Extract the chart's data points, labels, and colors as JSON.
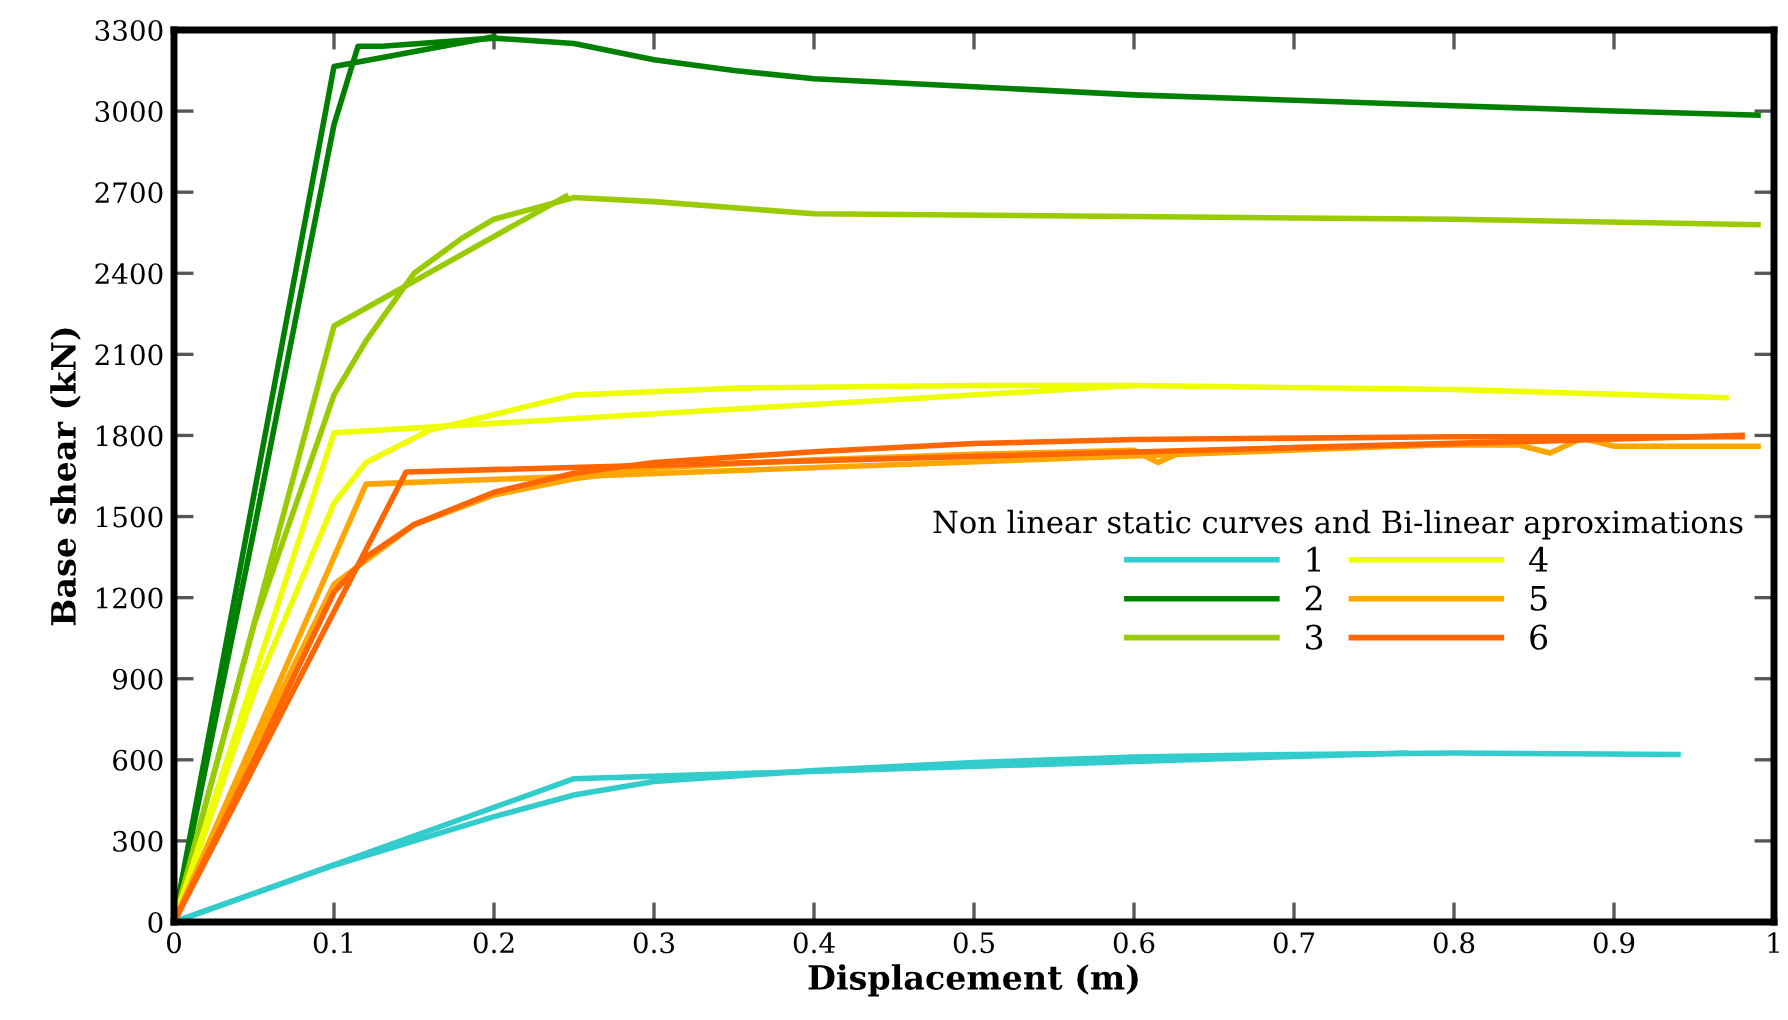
{
  "chart_data": {
    "type": "line",
    "xlabel": "Displacement (m)",
    "ylabel": "Base shear (kN)",
    "legend_title": "Non linear static curves and Bi-linear aproximations",
    "legend": "right",
    "grid": false,
    "marker": "none",
    "line_style": "solid",
    "xlim": [
      0,
      1
    ],
    "xticks": [
      0,
      0.1,
      0.2,
      0.3,
      0.4,
      0.5,
      0.6,
      0.7,
      0.8,
      0.9,
      1
    ],
    "ylim": [
      0,
      3300
    ],
    "yticks": [
      0,
      300,
      600,
      900,
      1200,
      1500,
      1800,
      2100,
      2400,
      2700,
      3000,
      3300
    ],
    "series": [
      {
        "name": "1",
        "color": "#33cccc",
        "x": [
          0,
          0.1,
          0.2,
          0.25,
          0.3,
          0.4,
          0.5,
          0.6,
          0.7,
          0.8,
          0.94
        ],
        "values": [
          0,
          210,
          390,
          470,
          520,
          560,
          590,
          610,
          620,
          625,
          620
        ]
      },
      {
        "color": "#33cccc",
        "x": [
          0,
          0.25,
          0.77
        ],
        "values": [
          0,
          530,
          625
        ]
      },
      {
        "name": "2",
        "color": "#008000",
        "x": [
          0,
          0.05,
          0.1,
          0.115,
          0.13,
          0.2,
          0.25,
          0.3,
          0.35,
          0.4,
          0.5,
          0.6,
          0.7,
          0.8,
          0.9,
          0.99
        ],
        "values": [
          0,
          1450,
          2950,
          3240,
          3240,
          3270,
          3250,
          3190,
          3150,
          3120,
          3090,
          3060,
          3040,
          3020,
          3000,
          2985
        ]
      },
      {
        "color": "#008000",
        "x": [
          0,
          0.1,
          0.2
        ],
        "values": [
          0,
          3165,
          3275
        ]
      },
      {
        "name": "3",
        "color": "#99cc00",
        "x": [
          0,
          0.05,
          0.1,
          0.12,
          0.15,
          0.18,
          0.2,
          0.25,
          0.3,
          0.4,
          0.6,
          0.8,
          0.99
        ],
        "values": [
          0,
          1100,
          1950,
          2150,
          2400,
          2530,
          2600,
          2680,
          2665,
          2620,
          2610,
          2600,
          2580
        ]
      },
      {
        "color": "#99cc00",
        "x": [
          0,
          0.1,
          0.245
        ],
        "values": [
          0,
          2205,
          2685
        ]
      },
      {
        "name": "4",
        "color": "#eeff00",
        "x": [
          0,
          0.05,
          0.1,
          0.12,
          0.16,
          0.25,
          0.35,
          0.5,
          0.6,
          0.8,
          0.97
        ],
        "values": [
          0,
          850,
          1550,
          1700,
          1820,
          1950,
          1975,
          1985,
          1985,
          1970,
          1940
        ]
      },
      {
        "color": "#eeff00",
        "x": [
          0,
          0.1,
          0.6
        ],
        "values": [
          0,
          1810,
          1985
        ]
      },
      {
        "name": "5",
        "color": "#ffa500",
        "x": [
          0,
          0.05,
          0.1,
          0.15,
          0.2,
          0.25,
          0.3,
          0.4,
          0.5,
          0.6,
          0.615,
          0.63,
          0.7,
          0.8,
          0.84,
          0.86,
          0.88,
          0.9,
          0.99
        ],
        "values": [
          0,
          650,
          1250,
          1470,
          1580,
          1640,
          1680,
          1710,
          1730,
          1745,
          1700,
          1740,
          1755,
          1765,
          1765,
          1735,
          1790,
          1760,
          1760
        ]
      },
      {
        "color": "#ffa500",
        "x": [
          0,
          0.12,
          0.88
        ],
        "values": [
          0,
          1620,
          1785
        ]
      },
      {
        "name": "6",
        "color": "#ff6600",
        "x": [
          0,
          0.05,
          0.1,
          0.12,
          0.15,
          0.2,
          0.25,
          0.3,
          0.4,
          0.5,
          0.6,
          0.8,
          0.98
        ],
        "values": [
          0,
          600,
          1220,
          1350,
          1470,
          1590,
          1660,
          1700,
          1740,
          1770,
          1785,
          1795,
          1795
        ]
      },
      {
        "color": "#ff6600",
        "x": [
          0,
          0.145,
          0.98
        ],
        "values": [
          0,
          1665,
          1800
        ]
      }
    ]
  }
}
